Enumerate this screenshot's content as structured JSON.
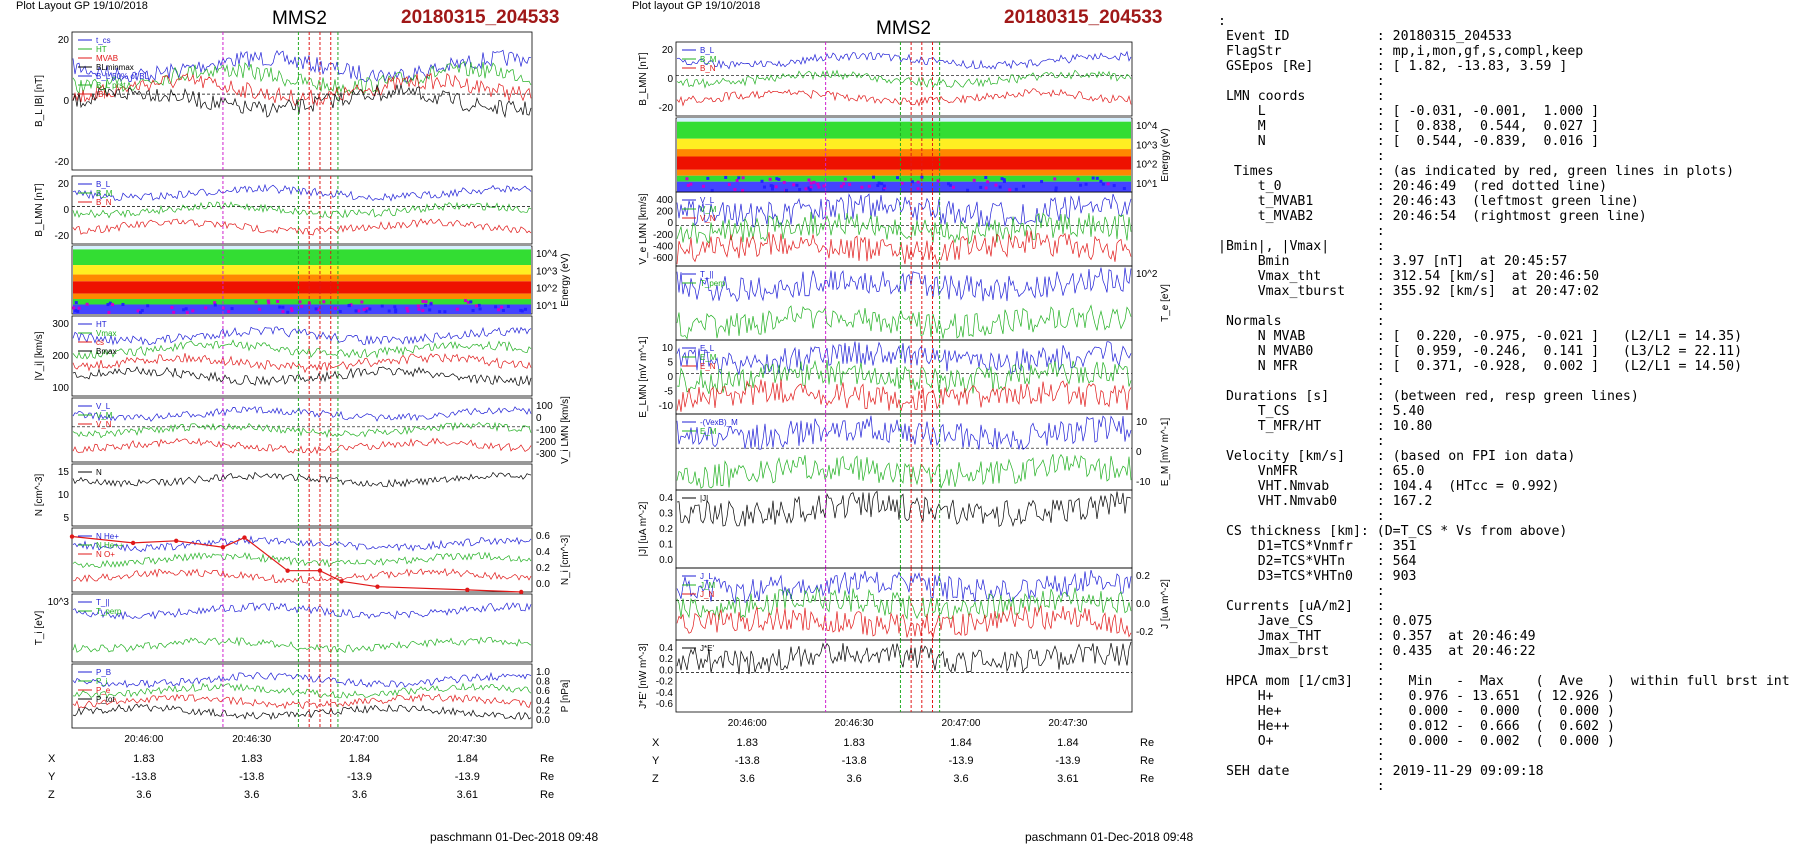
{
  "left_page": {
    "header": "Plot Layout GP 19/10/2018",
    "title": "MMS2",
    "event": "20180315_204533",
    "footer": "paschmann 01-Dec-2018 09:48",
    "time_ticks": [
      "20:46:00",
      "20:46:30",
      "20:47:00",
      "20:47:30"
    ],
    "coords": [
      {
        "name": "X",
        "values": [
          "1.83",
          "1.83",
          "1.84",
          "1.84"
        ],
        "unit": "Re"
      },
      {
        "name": "Y",
        "values": [
          "-13.8",
          "-13.8",
          "-13.9",
          "-13.9"
        ],
        "unit": "Re"
      },
      {
        "name": "Z",
        "values": [
          "3.6",
          "3.6",
          "3.6",
          "3.61"
        ],
        "unit": "Re"
      }
    ]
  },
  "right_page": {
    "header": "Plot layout GP 19/10/2018",
    "title": "MMS2",
    "event": "20180315_204533",
    "footer": "paschmann 01-Dec-2018 09:48",
    "time_ticks": [
      "20:46:00",
      "20:46:30",
      "20:47:00",
      "20:47:30"
    ],
    "coords": [
      {
        "name": "X",
        "values": [
          "1.83",
          "1.83",
          "1.84",
          "1.84"
        ],
        "unit": "Re"
      },
      {
        "name": "Y",
        "values": [
          "-13.8",
          "-13.8",
          "-13.9",
          "-13.9"
        ],
        "unit": "Re"
      },
      {
        "name": "Z",
        "values": [
          "3.6",
          "3.6",
          "3.6",
          "3.61"
        ],
        "unit": "Re"
      }
    ]
  },
  "chart_data": [
    {
      "type": "line",
      "page": "left",
      "panels": [
        {
          "ylabel": "B_L |B| [nT]",
          "yticks": [
            "20",
            "0",
            "-20"
          ],
          "legend": [
            "t_cs",
            "HT",
            "MVAB",
            "BLminmax",
            "B_L 50% of BL",
            "B_L prst",
            "|B|"
          ]
        },
        {
          "ylabel": "B_LMN [nT]",
          "yticks": [
            "20",
            "0",
            "-20"
          ],
          "legend": [
            "B_L",
            "B_M",
            "B_N"
          ]
        },
        {
          "ylabel": "Energy (eV)",
          "type": "heatmap",
          "yticks": [
            "10^4",
            "10^3",
            "10^2",
            "10^1"
          ]
        },
        {
          "ylabel": "|V_i| [km/s]",
          "yticks": [
            "300",
            "200",
            "100"
          ],
          "legend": [
            "HT",
            "Vmax",
            "cs",
            "Bmax"
          ]
        },
        {
          "ylabel": "V_i LMN [km/s]",
          "yticks": [
            "100",
            "0",
            "-100",
            "-200",
            "-300"
          ],
          "legend": [
            "V_L",
            "V_M",
            "V_N"
          ]
        },
        {
          "ylabel": "N [cm^-3]",
          "yticks": [
            "15",
            "10",
            "5"
          ],
          "legend": [
            "N"
          ]
        },
        {
          "ylabel": "N_i [cm^-3]",
          "yticks": [
            "0.6",
            "0.4",
            "0.2",
            "0.0"
          ],
          "legend": [
            "N He+",
            "N He++",
            "N O+"
          ],
          "series": [
            {
              "name": "N He++",
              "x": [
                "20:45:40",
                "20:45:57",
                "20:46:09",
                "20:46:22",
                "20:46:28",
                "20:46:40",
                "20:46:49",
                "20:46:55",
                "20:47:05",
                "20:47:30",
                "20:47:45"
              ],
              "values": [
                0.52,
                0.46,
                0.48,
                0.42,
                0.51,
                0.2,
                0.2,
                0.1,
                0.05,
                0.02,
                0.0
              ]
            }
          ]
        },
        {
          "ylabel": "T_i [eV]",
          "yticks": [
            "10^3"
          ],
          "legend": [
            "T_||",
            "T_perp"
          ]
        },
        {
          "ylabel": "P [nPa]",
          "yticks": [
            "1.0",
            "0.8",
            "0.6",
            "0.4",
            "0.2",
            "0.0"
          ],
          "legend": [
            "P_B",
            "P_i",
            "P_e",
            "P_tot"
          ]
        }
      ]
    },
    {
      "type": "line",
      "page": "right",
      "panels": [
        {
          "ylabel": "B_LMN [nT]",
          "yticks": [
            "20",
            "0",
            "-20"
          ],
          "legend": [
            "B_L",
            "B_M",
            "B_N"
          ]
        },
        {
          "ylabel": "Energy (eV)",
          "type": "heatmap",
          "yticks": [
            "10^4",
            "10^3",
            "10^2",
            "10^1"
          ]
        },
        {
          "ylabel": "V_e LMN [km/s]",
          "yticks": [
            "400",
            "200",
            "0",
            "-200",
            "-400",
            "-600"
          ],
          "legend": [
            "V_L",
            "V_M",
            "V_N"
          ]
        },
        {
          "ylabel": "T_e [eV]",
          "yticks": [
            "10^2"
          ],
          "legend": [
            "T_||",
            "T_perp"
          ]
        },
        {
          "ylabel": "E_LMN [mV m^-1]",
          "yticks": [
            "10",
            "5",
            "0",
            "-5",
            "-10"
          ],
          "legend": [
            "E_L",
            "E_M",
            "E_N"
          ]
        },
        {
          "ylabel": "E_M [mV m^-1]",
          "yticks": [
            "10",
            "0",
            "-10"
          ],
          "legend": [
            "-(VexB)_M",
            "E_M"
          ]
        },
        {
          "ylabel": "|J| [uA m^-2]",
          "yticks": [
            "0.4",
            "0.3",
            "0.2",
            "0.1",
            "0.0"
          ],
          "legend": [
            "|J|"
          ]
        },
        {
          "ylabel": "J [uA m^-2]",
          "yticks": [
            "0.2",
            "0.0",
            "-0.2"
          ],
          "legend": [
            "J_L",
            "J_M",
            "J_N"
          ]
        },
        {
          "ylabel": "J*E' [nW m^-3]",
          "yticks": [
            "0.4",
            "0.2",
            "0.0",
            "-0.2",
            "-0.4",
            "-0.6"
          ],
          "legend": [
            "J*E'"
          ]
        }
      ]
    }
  ],
  "info": {
    "lines": [
      ":",
      " Event ID           : 20180315_204533",
      " FlagStr            : mp,i,mon,gf,s,compl,keep",
      " GSEpos [Re]        : [ 1.82, -13.83, 3.59 ]",
      "                    :",
      " LMN coords         :",
      "     L              : [ -0.031, -0.001,  1.000 ]",
      "     M              : [  0.838,  0.544,  0.027 ]",
      "     N              : [  0.544, -0.839,  0.016 ]",
      "                    :",
      "  Times             : (as indicated by red, green lines in plots)",
      "     t_0            : 20:46:49  (red dotted line)",
      "     t_MVAB1        : 20:46:43  (leftmost green line)",
      "     t_MVAB2        : 20:46:54  (rightmost green line)",
      "                    :",
      "|Bmin|, |Vmax|      :",
      "     Bmin           : 3.97 [nT]  at 20:45:57",
      "     Vmax_tht       : 312.54 [km/s]  at 20:46:50",
      "     Vmax_tburst    : 355.92 [km/s]  at 20:47:02",
      "                    :",
      " Normals            :",
      "     N MVAB         : [  0.220, -0.975, -0.021 ]   (L2/L1 = 14.35)",
      "     N MVAB0        : [  0.959, -0.246,  0.141 ]   (L3/L2 = 22.11)",
      "     N MFR          : [  0.371, -0.928,  0.002 ]   (L2/L1 = 14.50)",
      "                    :",
      " Durations [s]      : (between red, resp green lines)",
      "     T_CS           : 5.40",
      "     T_MFR/HT       : 10.80",
      "                    :",
      " Velocity [km/s]    : (based on FPI ion data)",
      "     VnMFR          : 65.0",
      "     VHT.Nmvab      : 104.4  (HTcc = 0.992)",
      "     VHT.Nmvab0     : 167.2",
      "                    :",
      " CS thickness [km]: (D=T_CS * Vs from above)",
      "     D1=TCS*Vnmfr   : 351",
      "     D2=TCS*VHTn    : 564",
      "     D3=TCS*VHTn0   : 903",
      "                    :",
      " Currents [uA/m2]   :",
      "     Jave_CS        : 0.075",
      "     Jmax_THT       : 0.357  at 20:46:49",
      "     Jmax_brst      : 0.435  at 20:46:22",
      "                    :",
      " HPCA mom [1/cm3]   :   Min   -  Max    (  Ave   )  within full brst int",
      "     H+             :   0.976 - 13.651  ( 12.926 )",
      "     He+            :   0.000 -  0.000  (  0.000 )",
      "     He++           :   0.012 -  0.666  (  0.602 )",
      "     O+             :   0.000 -  0.002  (  0.000 )",
      "                    :",
      " SEH date           : 2019-11-29 09:09:18",
      "                    :"
    ]
  }
}
